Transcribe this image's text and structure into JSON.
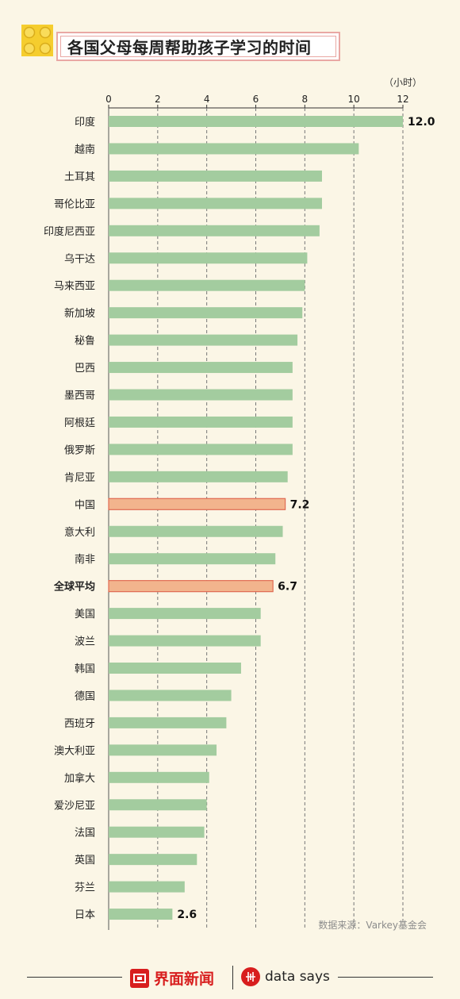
{
  "header": {
    "title": "各国父母每周帮助孩子学习的时间"
  },
  "chart_data": {
    "type": "bar",
    "orientation": "horizontal",
    "title": "各国父母每周帮助孩子学习的时间",
    "unit_label": "（小时）",
    "xlim": [
      0,
      12
    ],
    "ticks": [
      0,
      2,
      4,
      6,
      8,
      10,
      12
    ],
    "grid": true,
    "categories": [
      "印度",
      "越南",
      "土耳其",
      "哥伦比亚",
      "印度尼西亚",
      "乌干达",
      "马来西亚",
      "新加坡",
      "秘鲁",
      "巴西",
      "墨西哥",
      "阿根廷",
      "俄罗斯",
      "肯尼亚",
      "中国",
      "意大利",
      "南非",
      "全球平均",
      "美国",
      "波兰",
      "韩国",
      "德国",
      "西班牙",
      "澳大利亚",
      "加拿大",
      "爱沙尼亚",
      "法国",
      "英国",
      "芬兰",
      "日本"
    ],
    "values": [
      12.0,
      10.2,
      8.7,
      8.7,
      8.6,
      8.1,
      8.0,
      7.9,
      7.7,
      7.5,
      7.5,
      7.5,
      7.5,
      7.3,
      7.2,
      7.1,
      6.8,
      6.7,
      6.2,
      6.2,
      5.4,
      5.0,
      4.8,
      4.4,
      4.1,
      4.0,
      3.9,
      3.6,
      3.1,
      2.6
    ],
    "highlighted": [
      "中国",
      "全球平均"
    ],
    "bold_categories": [
      "全球平均"
    ],
    "data_labels": [
      {
        "category": "印度",
        "text": "12.0"
      },
      {
        "category": "中国",
        "text": "7.2"
      },
      {
        "category": "全球平均",
        "text": "6.7"
      },
      {
        "category": "日本",
        "text": "2.6"
      }
    ],
    "colors": {
      "bar": "#a3cc9f",
      "highlight_fill": "#f2b48d",
      "highlight_border": "#e06b53",
      "grid": "#777777",
      "background": "#fbf6e6"
    }
  },
  "footer": {
    "source": "数据来源：Varkey基金会",
    "brand_jiemian": "界面新闻",
    "brand_datasays": "data says"
  },
  "icons": {
    "header_logo": "yellow-blocks-icon",
    "jiemian_logo": "jiemian-logo-icon",
    "datasays_logo": "datasays-logo-icon"
  }
}
